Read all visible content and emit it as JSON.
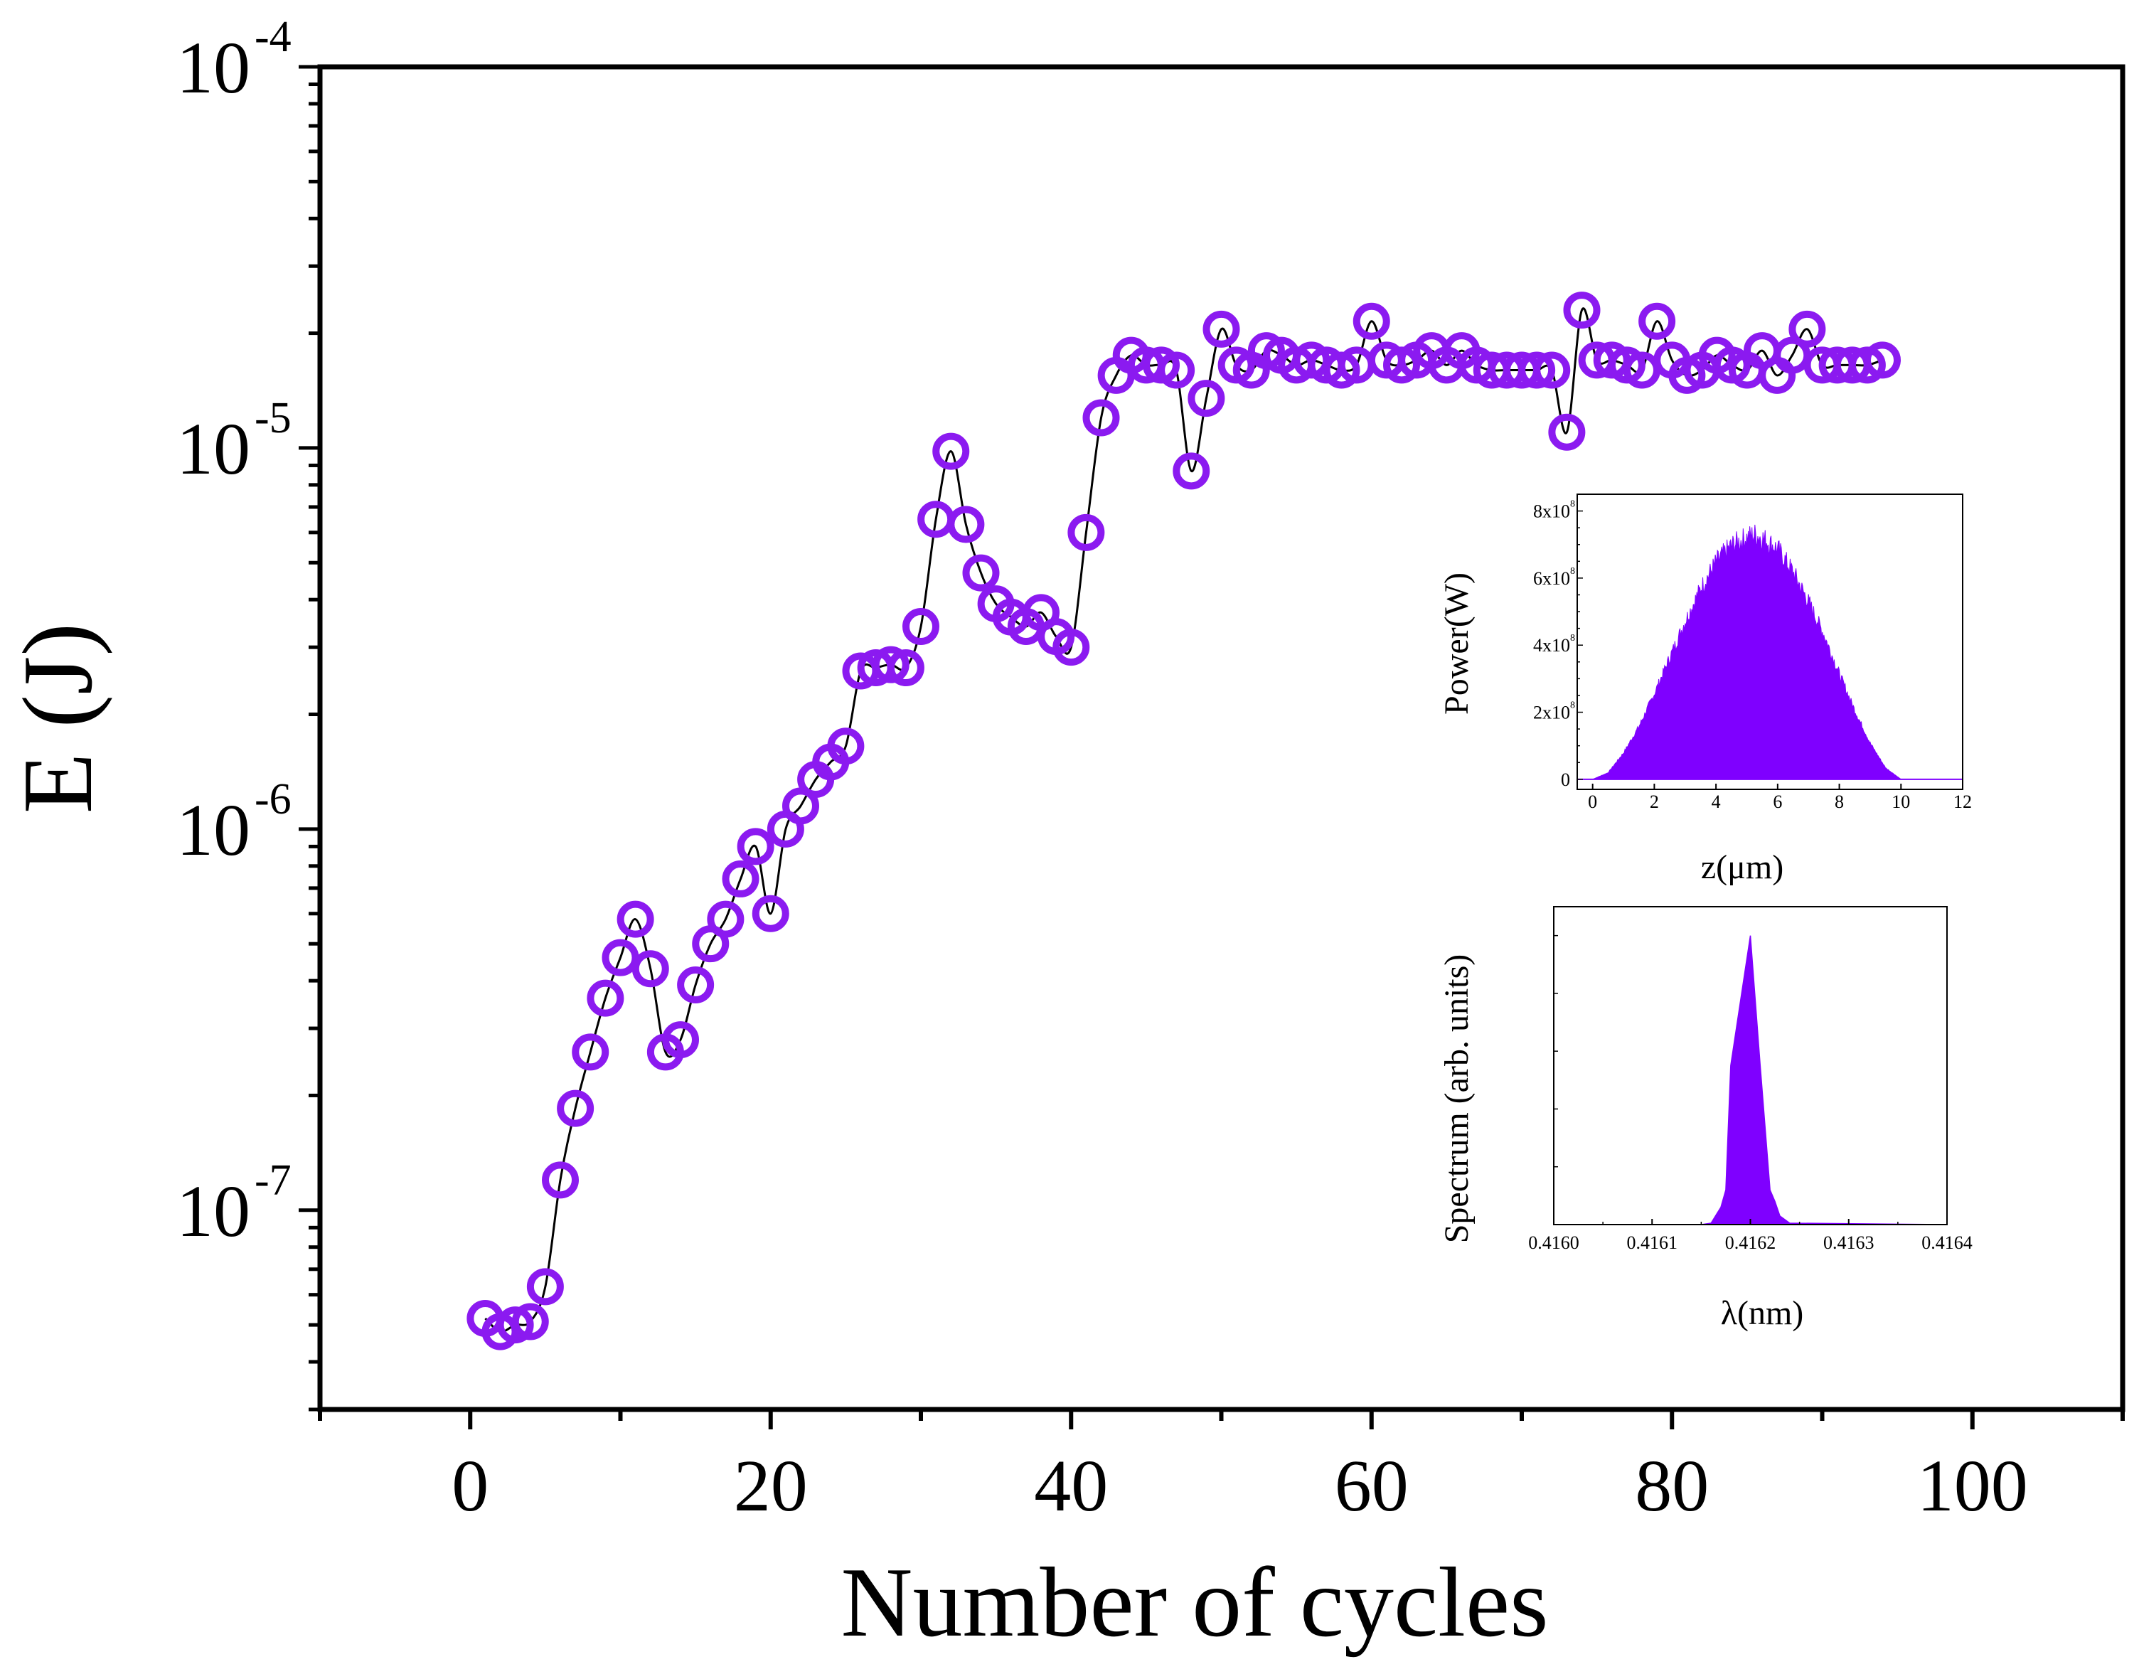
{
  "chart_data": {
    "main": {
      "type": "scatter",
      "title": "",
      "xlabel": "Number of cycles",
      "ylabel": "E (J)",
      "xlim": [
        -10,
        110
      ],
      "ylim": [
        3e-08,
        0.0001
      ],
      "yscale": "log",
      "x_ticks": [
        0,
        20,
        40,
        60,
        80,
        100
      ],
      "x_tick_labels": [
        "0",
        "20",
        "40",
        "60",
        "80",
        "100"
      ],
      "y_ticks": [
        1e-07,
        1e-06,
        1e-05,
        0.0001
      ],
      "y_tick_labels": [
        {
          "base": "10",
          "exp": "-7"
        },
        {
          "base": "10",
          "exp": "-6"
        },
        {
          "base": "10",
          "exp": "-5"
        },
        {
          "base": "10",
          "exp": "-4"
        }
      ],
      "series": [
        {
          "name": "E",
          "marker": "open-circle",
          "color": "#8B1AF0",
          "line_color": "#000000",
          "x": [
            1,
            2,
            3,
            4,
            5,
            6,
            7,
            8,
            9,
            10,
            11,
            12,
            13,
            14,
            15,
            16,
            17,
            18,
            19,
            20,
            21,
            22,
            23,
            24,
            25,
            26,
            27,
            28,
            29,
            30,
            31,
            32,
            33,
            34,
            35,
            36,
            37,
            38,
            39,
            40,
            41,
            42,
            43,
            44,
            45,
            46,
            47,
            48,
            49,
            50,
            51,
            52,
            53,
            54,
            55,
            56,
            57,
            58,
            59,
            60,
            61,
            62,
            63,
            64,
            65,
            66,
            67,
            68,
            69,
            70,
            71,
            72,
            73,
            74,
            75,
            76,
            77,
            78,
            79,
            80,
            81,
            82,
            83,
            84,
            85,
            86,
            87,
            88,
            89,
            90,
            91,
            92,
            93,
            94
          ],
          "y": [
            5.2e-08,
            4.8e-08,
            5e-08,
            5.1e-08,
            6.3e-08,
            1.2e-07,
            1.85e-07,
            2.6e-07,
            3.6e-07,
            4.6e-07,
            5.8e-07,
            4.3e-07,
            2.6e-07,
            2.8e-07,
            3.9e-07,
            5e-07,
            5.8e-07,
            7.4e-07,
            9e-07,
            6e-07,
            1e-06,
            1.15e-06,
            1.35e-06,
            1.5e-06,
            1.65e-06,
            2.6e-06,
            2.65e-06,
            2.7e-06,
            2.65e-06,
            3.4e-06,
            6.5e-06,
            9.8e-06,
            6.3e-06,
            4.7e-06,
            3.9e-06,
            3.6e-06,
            3.4e-06,
            3.7e-06,
            3.2e-06,
            3e-06,
            6e-06,
            1.2e-05,
            1.55e-05,
            1.75e-05,
            1.65e-05,
            1.65e-05,
            1.6e-05,
            8.7e-06,
            1.35e-05,
            2.05e-05,
            1.65e-05,
            1.6e-05,
            1.8e-05,
            1.75e-05,
            1.65e-05,
            1.7e-05,
            1.65e-05,
            1.6e-05,
            1.65e-05,
            2.15e-05,
            1.7e-05,
            1.65e-05,
            1.7e-05,
            1.8e-05,
            1.65e-05,
            1.8e-05,
            1.65e-05,
            1.6e-05,
            1.6e-05,
            1.6e-05,
            1.6e-05,
            1.6e-05,
            1.1e-05,
            2.3e-05,
            1.7e-05,
            1.7e-05,
            1.65e-05,
            1.6e-05,
            2.15e-05,
            1.7e-05,
            1.55e-05,
            1.6e-05,
            1.75e-05,
            1.65e-05,
            1.6e-05,
            1.8e-05,
            1.55e-05,
            1.75e-05,
            2.05e-05,
            1.65e-05,
            1.65e-05,
            1.65e-05,
            1.65e-05,
            1.7e-05
          ]
        }
      ]
    },
    "inset_power": {
      "type": "area",
      "xlabel": "z(μm)",
      "ylabel": "Power(W)",
      "xlim": [
        -0.5,
        12
      ],
      "ylim": [
        -0.3,
        8.5
      ],
      "x_ticks": [
        0,
        2,
        4,
        6,
        8,
        10,
        12
      ],
      "x_tick_labels": [
        "0",
        "2",
        "4",
        "6",
        "8",
        "10",
        "12"
      ],
      "y_ticks": [
        0,
        2,
        4,
        6,
        8
      ],
      "y_tick_labels": [
        {
          "base": "0",
          "exp": ""
        },
        {
          "base": "2x10",
          "exp": "8"
        },
        {
          "base": "4x10",
          "exp": "8"
        },
        {
          "base": "6x10",
          "exp": "8"
        },
        {
          "base": "8x10",
          "exp": "8"
        }
      ],
      "y_unit_scale": "1e8",
      "color": "#7F00FF",
      "envelope_x": [
        0,
        0.5,
        1.0,
        1.5,
        2.0,
        2.5,
        3.0,
        3.5,
        4.0,
        4.5,
        5.0,
        5.25,
        5.5,
        6.0,
        6.5,
        7.0,
        7.5,
        8.0,
        8.5,
        9.0,
        9.5,
        10.0
      ],
      "envelope_y": [
        0,
        0.2,
        0.8,
        1.6,
        2.6,
        3.7,
        4.8,
        5.8,
        6.6,
        7.1,
        7.35,
        7.45,
        7.35,
        7.0,
        6.3,
        5.4,
        4.4,
        3.2,
        2.1,
        1.1,
        0.35,
        0
      ]
    },
    "inset_spectrum": {
      "type": "area",
      "xlabel": "λ(nm)",
      "ylabel": "Spectrum (arb. units)",
      "xlim": [
        0.416,
        0.4164
      ],
      "ylim": [
        0,
        1.1
      ],
      "x_ticks": [
        0.416,
        0.4161,
        0.4162,
        0.4163,
        0.4164
      ],
      "x_tick_labels": [
        "0.4160",
        "0.4161",
        "0.4162",
        "0.4163",
        "0.4164"
      ],
      "color": "#7F00FF",
      "profile_x": [
        0.416,
        0.41615,
        0.41616,
        0.41617,
        0.416175,
        0.41618,
        0.4162,
        0.41621,
        0.41622,
        0.416225,
        0.41623,
        0.41624,
        0.4164
      ],
      "profile_y": [
        0,
        0,
        0.005,
        0.06,
        0.12,
        0.55,
        1.0,
        0.55,
        0.12,
        0.08,
        0.03,
        0.005,
        0
      ]
    }
  }
}
